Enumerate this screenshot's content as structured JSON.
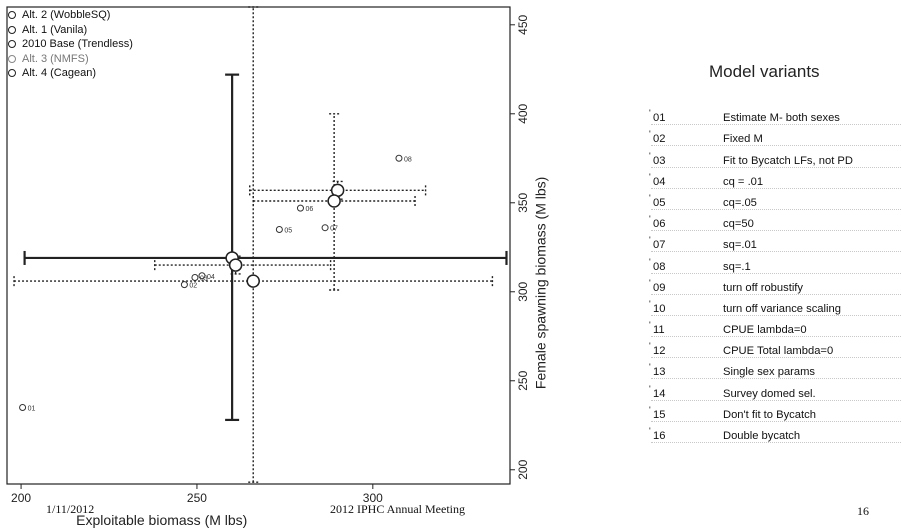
{
  "chart_data": {
    "type": "scatter",
    "xlabel": "Exploitable biomass (M lbs)",
    "ylabel": "Female spawning biomass (M lbs)",
    "xlim": [
      196,
      339
    ],
    "ylim": [
      192,
      460
    ],
    "x_ticks": [
      200,
      250,
      300
    ],
    "y_ticks": [
      200,
      250,
      300,
      350,
      400,
      450
    ],
    "legend": {
      "placement": "top-left",
      "entries": [
        "Alt. 2 (WobbleSQ)",
        "Alt. 1 (Vanila)",
        "2010 Base (Trendless)",
        "Alt. 3 (NMFS)",
        "Alt. 4 (Cagean)"
      ]
    },
    "series": [
      {
        "name": "Alt. 2 (WobbleSQ)",
        "x": 290,
        "y": 357,
        "x_err": [
          265,
          315
        ],
        "y_err": [
          352,
          362
        ]
      },
      {
        "name": "Alt. 1 (Vanila)",
        "x": 289,
        "y": 351,
        "x_err": [
          266,
          312
        ],
        "y_err": [
          301,
          400
        ]
      },
      {
        "name": "2010 Base (Trendless)",
        "x": 260,
        "y": 319,
        "x_err": [
          201,
          338
        ],
        "y_err": [
          228,
          422
        ]
      },
      {
        "name": "Alt. 3 (NMFS)",
        "x": 261,
        "y": 315,
        "x_err": [
          238,
          288
        ],
        "y_err": [
          310,
          320
        ]
      },
      {
        "name": "Alt. 4 (Cagean)",
        "x": 266,
        "y": 306,
        "x_err": [
          198,
          334
        ],
        "y_err": [
          193,
          460
        ]
      }
    ],
    "variant_points": [
      {
        "label": "01",
        "x": 201,
        "y": 235
      },
      {
        "label": "02",
        "x": 247,
        "y": 304
      },
      {
        "label": "03",
        "x": 250,
        "y": 308
      },
      {
        "label": "04",
        "x": 252,
        "y": 309
      },
      {
        "label": "05",
        "x": 274,
        "y": 335
      },
      {
        "label": "06",
        "x": 280,
        "y": 347
      },
      {
        "label": "07",
        "x": 287,
        "y": 336
      },
      {
        "label": "08",
        "x": 308,
        "y": 375
      }
    ],
    "colors": {
      "main": "#222222",
      "dotted": "#333333",
      "marker_fill": "#ffffff"
    }
  },
  "panel": {
    "title": "Model variants",
    "variants": [
      {
        "num": "01",
        "desc": "Estimate M- both sexes"
      },
      {
        "num": "02",
        "desc": "Fixed M"
      },
      {
        "num": "03",
        "desc": "Fit to Bycatch LFs, not PD"
      },
      {
        "num": "04",
        "desc": "cq = .01"
      },
      {
        "num": "05",
        "desc": "cq=.05"
      },
      {
        "num": "06",
        "desc": "cq=50"
      },
      {
        "num": "07",
        "desc": "sq=.01"
      },
      {
        "num": "08",
        "desc": "sq=.1"
      },
      {
        "num": "09",
        "desc": "turn off robustify"
      },
      {
        "num": "10",
        "desc": "turn off variance scaling"
      },
      {
        "num": "11",
        "desc": "CPUE lambda=0"
      },
      {
        "num": "12",
        "desc": "CPUE Total lambda=0"
      },
      {
        "num": "13",
        "desc": "Single sex params"
      },
      {
        "num": "14",
        "desc": "Survey domed sel."
      },
      {
        "num": "15",
        "desc": "Don't fit to Bycatch"
      },
      {
        "num": "16",
        "desc": "Double bycatch"
      }
    ]
  },
  "footer": {
    "date": "1/11/2012",
    "meeting": "2012 IPHC Annual Meeting",
    "page": "16"
  }
}
